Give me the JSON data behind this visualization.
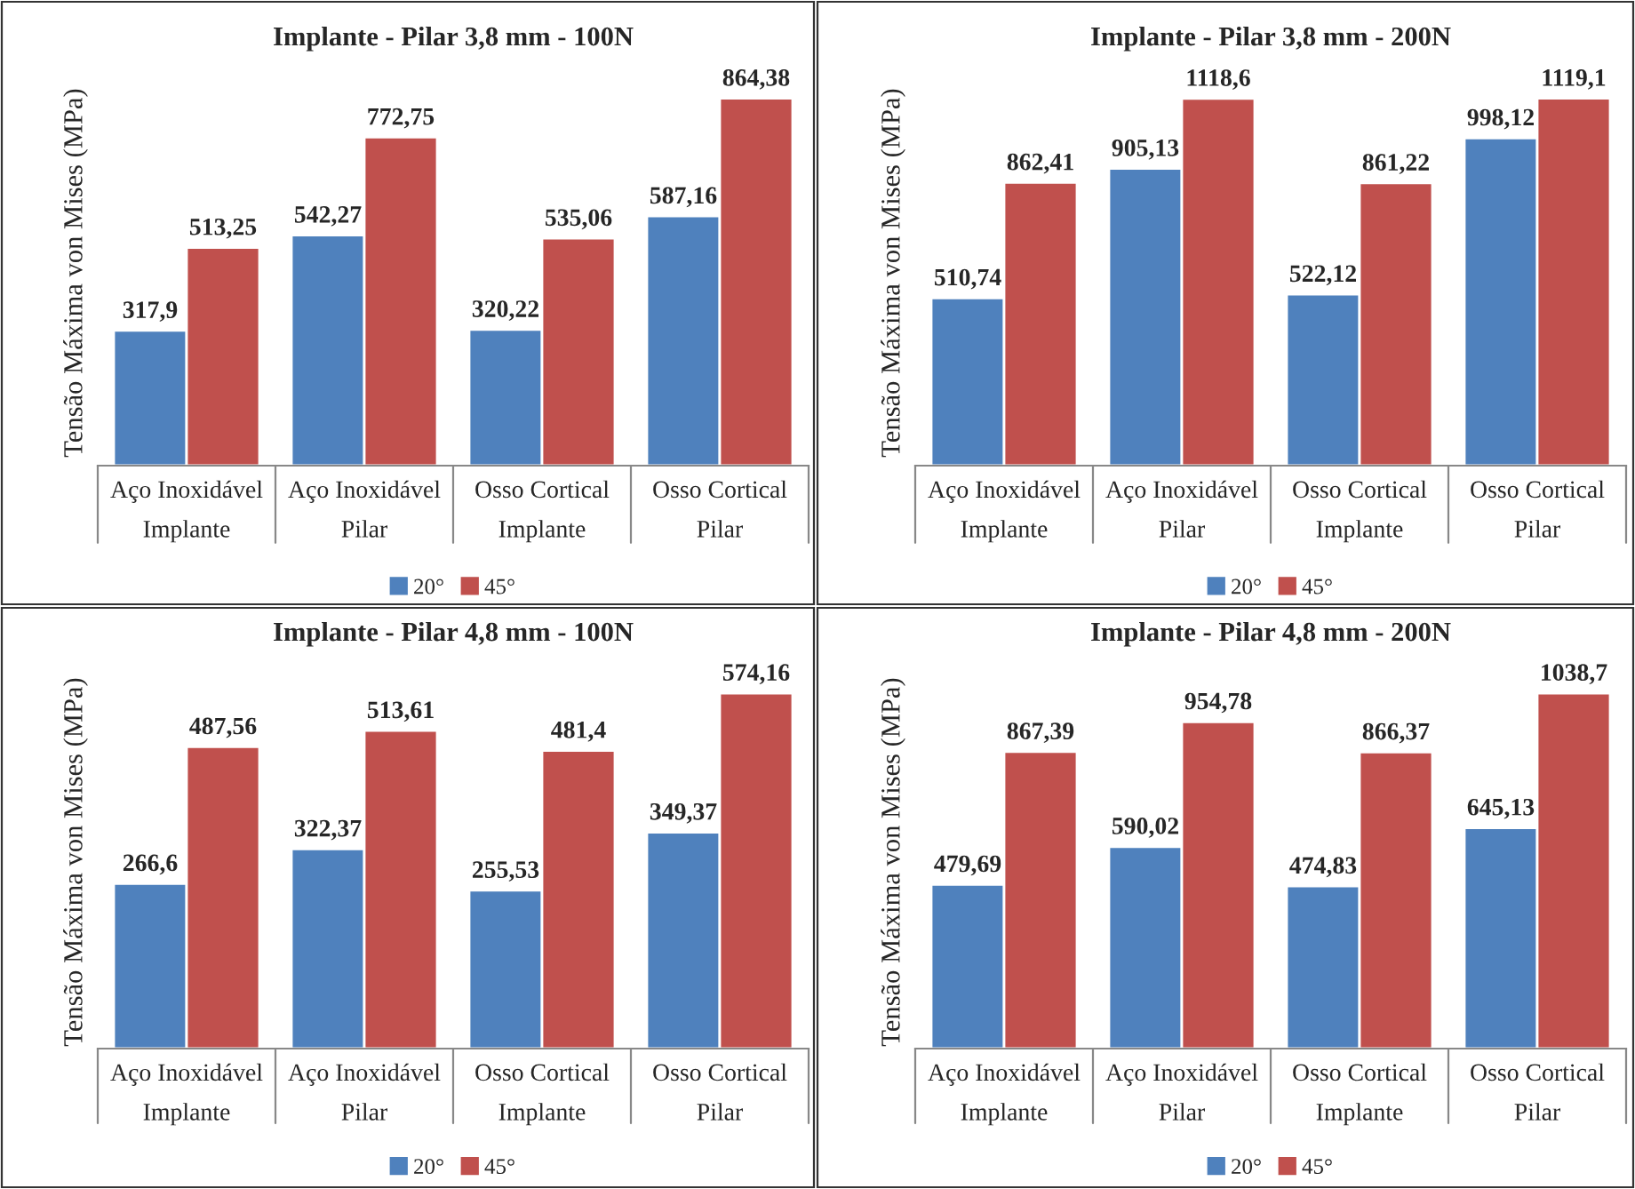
{
  "chart_data": [
    {
      "type": "bar",
      "title": "Implante - Pilar 3,8 mm - 100N",
      "ylabel": "Tensão Máxima von Mises (MPa)",
      "categories": [
        "Aço Inoxidável\nImplante",
        "Aço Inoxidável\nPilar",
        "Osso Cortical\nImplante",
        "Osso Cortical\nPilar"
      ],
      "series": [
        {
          "name": "20°",
          "color": "#4f81bd",
          "values": [
            317.9,
            542.27,
            320.22,
            587.16
          ],
          "value_labels": [
            "317,9",
            "542,27",
            "320,22",
            "587,16"
          ]
        },
        {
          "name": "45°",
          "color": "#c0504d",
          "values": [
            513.25,
            772.75,
            535.06,
            864.38
          ],
          "value_labels": [
            "513,25",
            "772,75",
            "535,06",
            "864,38"
          ]
        }
      ],
      "tick_labels": "x",
      "legend": "bottom"
    },
    {
      "type": "bar",
      "title": "Implante - Pilar 3,8 mm - 200N",
      "ylabel": "Tensão Máxima von Mises (MPa)",
      "categories": [
        "Aço Inoxidável\nImplante",
        "Aço Inoxidável\nPilar",
        "Osso Cortical\nImplante",
        "Osso Cortical\nPilar"
      ],
      "series": [
        {
          "name": "20°",
          "color": "#4f81bd",
          "values": [
            510.74,
            905.13,
            522.12,
            998.12
          ],
          "value_labels": [
            "510,74",
            "905,13",
            "522,12",
            "998,12"
          ]
        },
        {
          "name": "45°",
          "color": "#c0504d",
          "values": [
            862.41,
            1118.6,
            861.22,
            1119.1
          ],
          "value_labels": [
            "862,41",
            "1118,6",
            "861,22",
            "1119,1"
          ]
        }
      ],
      "tick_labels": "x",
      "legend": "bottom"
    },
    {
      "type": "bar",
      "title": "Implante - Pilar 4,8 mm - 100N",
      "ylabel": "Tensão Máxima von Mises (MPa)",
      "categories": [
        "Aço Inoxidável\nImplante",
        "Aço Inoxidável\nPilar",
        "Osso Cortical\nImplante",
        "Osso Cortical\nPilar"
      ],
      "series": [
        {
          "name": "20°",
          "color": "#4f81bd",
          "values": [
            266.6,
            322.37,
            255.53,
            349.37
          ],
          "value_labels": [
            "266,6",
            "322,37",
            "255,53",
            "349,37"
          ]
        },
        {
          "name": "45°",
          "color": "#c0504d",
          "values": [
            487.56,
            513.61,
            481.4,
            574.16
          ],
          "value_labels": [
            "487,56",
            "513,61",
            "481,4",
            "574,16"
          ]
        }
      ],
      "tick_labels": "x",
      "legend": "bottom"
    },
    {
      "type": "bar",
      "title": "Implante - Pilar 4,8 mm - 200N",
      "ylabel": "Tensão Máxima von Mises (MPa)",
      "categories": [
        "Aço Inoxidável\nImplante",
        "Aço Inoxidável\nPilar",
        "Osso Cortical\nImplante",
        "Osso Cortical\nPilar"
      ],
      "series": [
        {
          "name": "20°",
          "color": "#4f81bd",
          "values": [
            479.69,
            590.02,
            474.83,
            645.13
          ],
          "value_labels": [
            "479,69",
            "590,02",
            "474,83",
            "645,13"
          ]
        },
        {
          "name": "45°",
          "color": "#c0504d",
          "values": [
            867.39,
            954.78,
            866.37,
            1038.7
          ],
          "value_labels": [
            "867,39",
            "954,78",
            "866,37",
            "1038,7"
          ]
        }
      ],
      "tick_labels": "x",
      "legend": "bottom"
    }
  ]
}
